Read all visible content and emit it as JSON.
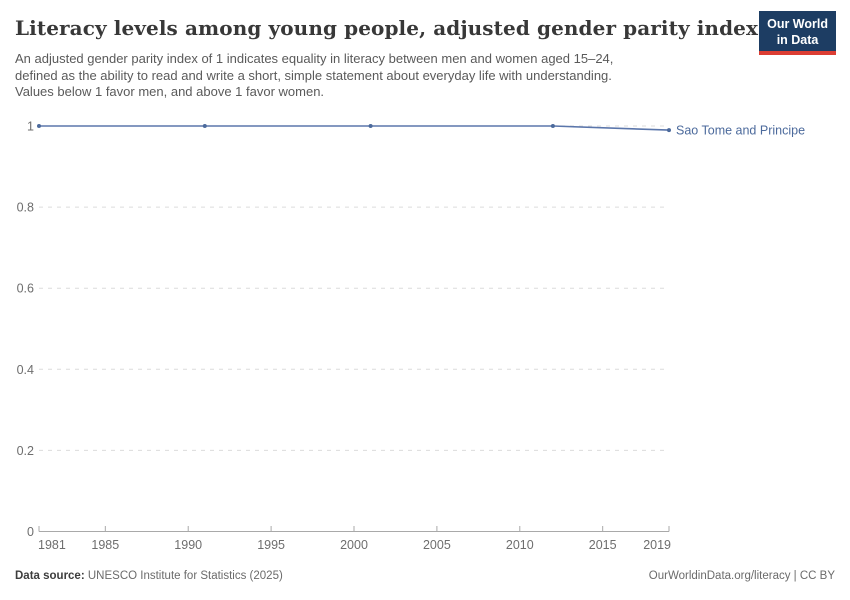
{
  "header": {
    "title": "Literacy levels among young people, adjusted gender parity index",
    "subtitle_lines": [
      "An adjusted gender parity index of 1 indicates equality in literacy between men and women aged 15–24,",
      "defined as the ability to read and write a short, simple statement about everyday life with understanding.",
      "Values below 1 favor men, and above 1 favor women."
    ],
    "logo": {
      "line1": "Our World",
      "line2": "in Data",
      "bg_color": "#1d3d63",
      "accent_color": "#dc3d33"
    }
  },
  "chart_data": {
    "type": "line",
    "title": "Literacy levels among young people, adjusted gender parity index",
    "xlabel": "",
    "ylabel": "",
    "xlim": [
      1981,
      2019
    ],
    "ylim": [
      0,
      1
    ],
    "x_ticks": [
      1981,
      1985,
      1990,
      1995,
      2000,
      2005,
      2010,
      2015,
      2019
    ],
    "y_ticks": [
      0,
      0.2,
      0.4,
      0.6,
      0.8,
      1
    ],
    "y_tick_labels": [
      "0",
      "0.2",
      "0.4",
      "0.6",
      "0.8",
      "1"
    ],
    "grid": "horizontal-dashed",
    "legend_position": "end-of-line-label",
    "colors": {
      "gridline": "#dcdcdc",
      "axis": "#a9a9a9",
      "tick_label": "#6e6e6e"
    },
    "series": [
      {
        "name": "Sao Tome and Principe",
        "color": "#4c6a9c",
        "line_color": "#5b76ab",
        "x": [
          1981,
          1991,
          2001,
          2012,
          2019
        ],
        "y": [
          1.0,
          1.0,
          1.0,
          1.0,
          0.99
        ]
      }
    ]
  },
  "footer": {
    "data_source_label": "Data source:",
    "data_source_value": "UNESCO Institute for Statistics (2025)",
    "attribution": "OurWorldinData.org/literacy | CC BY"
  }
}
